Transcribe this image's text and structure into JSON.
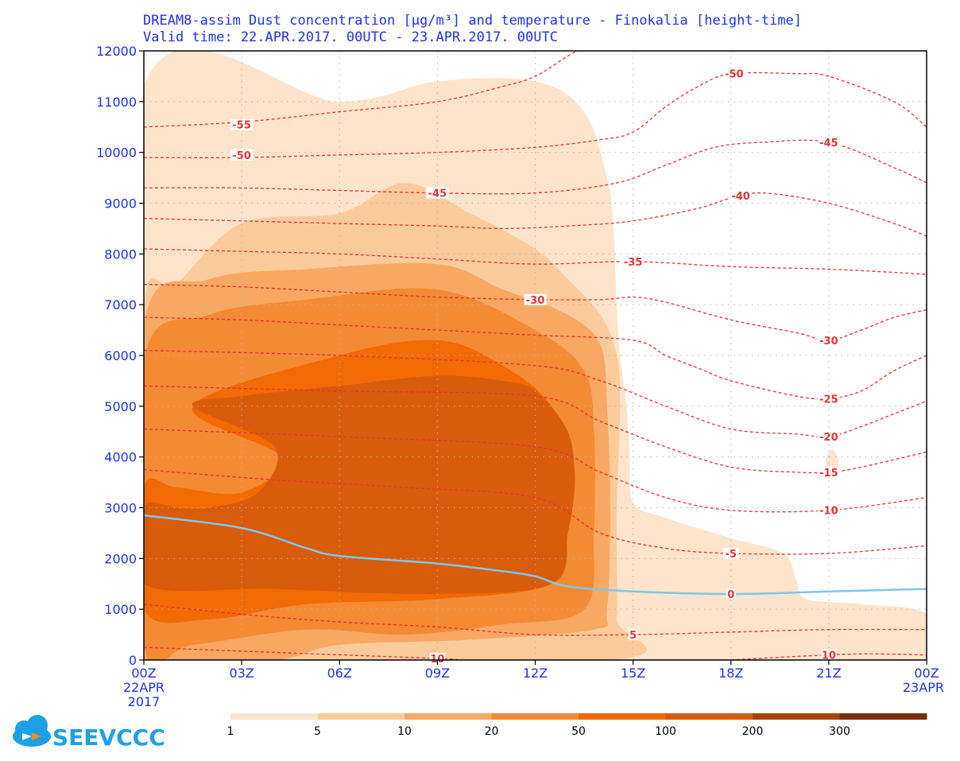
{
  "title_line1": "DREAM8-assim Dust concentration [µg/m³] and temperature - Finokalia [height-time]",
  "title_line2": "Valid time:  22.APR.2017. 00UTC - 23.APR.2017. 00UTC",
  "logo": {
    "text": "SEEVCCC",
    "icon": "cloud-icon"
  },
  "colors": {
    "axis_text": "#1e32e6",
    "temperature_contour": "#e83232",
    "zero_isotherm": "#7ec8e8",
    "dust_levels": [
      "#fde4cb",
      "#fbcb9c",
      "#f8a863",
      "#f58a35",
      "#f26a04",
      "#d85c0c",
      "#a74407",
      "#7c2e04"
    ]
  },
  "chart_data": {
    "type": "heatmap",
    "x_ticks": [
      "00Z",
      "03Z",
      "06Z",
      "09Z",
      "12Z",
      "15Z",
      "18Z",
      "21Z",
      "00Z"
    ],
    "x_tick_hours": [
      0,
      3,
      6,
      9,
      12,
      15,
      18,
      21,
      24
    ],
    "x_sub_labels": [
      [
        "22APR",
        "2017"
      ],
      [],
      [],
      [],
      [],
      [],
      [],
      [],
      [
        "23APR"
      ]
    ],
    "xlim": [
      0,
      24
    ],
    "ylim": [
      0,
      12000
    ],
    "y_ticks": [
      0,
      1000,
      2000,
      3000,
      4000,
      5000,
      6000,
      7000,
      8000,
      9000,
      10000,
      11000,
      12000
    ],
    "grid": true,
    "colorbar": {
      "labels": [
        "1",
        "5",
        "10",
        "20",
        "50",
        "100",
        "200",
        "300"
      ],
      "levels": [
        1,
        5,
        10,
        20,
        50,
        100,
        200,
        300
      ]
    },
    "dust_regions": [
      {
        "level": 1,
        "points": [
          [
            0,
            11300
          ],
          [
            6,
            11000
          ],
          [
            9,
            11400
          ],
          [
            12,
            11400
          ],
          [
            13.5,
            10800
          ],
          [
            14.2,
            9500
          ],
          [
            14.4,
            8500
          ],
          [
            14.5,
            7000
          ],
          [
            14.6,
            6000
          ],
          [
            14.8,
            5000
          ],
          [
            14.9,
            4000
          ],
          [
            15,
            3100
          ],
          [
            16,
            2800
          ],
          [
            18,
            2400
          ],
          [
            19.6,
            2100
          ],
          [
            20,
            1600
          ],
          [
            20.3,
            1200
          ],
          [
            22,
            1100
          ],
          [
            24,
            900
          ],
          [
            24,
            0
          ],
          [
            0,
            0
          ]
        ]
      },
      {
        "level": 1,
        "points": [
          [
            20.9,
            3950
          ],
          [
            21.1,
            4150
          ],
          [
            21.3,
            3950
          ],
          [
            21.2,
            3750
          ],
          [
            21,
            3800
          ]
        ]
      },
      {
        "level": 5,
        "points": [
          [
            0,
            6900
          ],
          [
            1,
            7400
          ],
          [
            3,
            8600
          ],
          [
            6,
            8800
          ],
          [
            8,
            9400
          ],
          [
            10,
            8800
          ],
          [
            12,
            8100
          ],
          [
            13,
            7500
          ],
          [
            14,
            6800
          ],
          [
            14.5,
            6000
          ],
          [
            14.6,
            5000
          ],
          [
            14.5,
            3000
          ],
          [
            14.5,
            2000
          ],
          [
            14.5,
            800
          ],
          [
            14.3,
            0
          ],
          [
            0,
            0
          ]
        ]
      },
      {
        "level": 10,
        "points": [
          [
            0,
            6600
          ],
          [
            2,
            7500
          ],
          [
            5,
            7700
          ],
          [
            9,
            7800
          ],
          [
            11,
            7300
          ],
          [
            13,
            6800
          ],
          [
            14,
            6200
          ],
          [
            14.2,
            5000
          ],
          [
            14.3,
            3000
          ],
          [
            14.2,
            1000
          ],
          [
            13.8,
            600
          ],
          [
            10,
            400
          ],
          [
            6,
            300
          ],
          [
            4,
            0
          ],
          [
            0,
            0
          ]
        ]
      },
      {
        "level": 20,
        "points": [
          [
            0,
            5900
          ],
          [
            2,
            6800
          ],
          [
            5,
            7100
          ],
          [
            9,
            7300
          ],
          [
            12,
            6500
          ],
          [
            13.5,
            5700
          ],
          [
            13.8,
            4500
          ],
          [
            13.8,
            2500
          ],
          [
            13.5,
            1000
          ],
          [
            11,
            700
          ],
          [
            8,
            500
          ],
          [
            5,
            600
          ],
          [
            1.5,
            300
          ],
          [
            0,
            300
          ]
        ]
      },
      {
        "level": 50,
        "points": [
          [
            0,
            3400
          ],
          [
            1,
            3400
          ],
          [
            3,
            3300
          ],
          [
            4.2,
            4000
          ],
          [
            1.5,
            5000
          ],
          [
            6,
            6000
          ],
          [
            9,
            6300
          ],
          [
            11,
            5800
          ],
          [
            12.5,
            5000
          ],
          [
            13.2,
            3800
          ],
          [
            13,
            2500
          ],
          [
            12.5,
            1500
          ],
          [
            9,
            1200
          ],
          [
            5,
            1100
          ],
          [
            2,
            800
          ],
          [
            0,
            1000
          ]
        ]
      },
      {
        "level": 100,
        "points": [
          [
            1.5,
            5000
          ],
          [
            4,
            4200
          ],
          [
            3.5,
            3300
          ],
          [
            2,
            3000
          ],
          [
            1,
            3000
          ],
          [
            0,
            3000
          ],
          [
            0,
            1500
          ],
          [
            4,
            1400
          ],
          [
            9,
            1300
          ],
          [
            12.5,
            1500
          ],
          [
            13,
            2500
          ],
          [
            13.2,
            3500
          ],
          [
            13,
            4500
          ],
          [
            12,
            5300
          ],
          [
            11,
            5500
          ],
          [
            9,
            5600
          ],
          [
            6,
            5400
          ],
          [
            3,
            5200
          ]
        ]
      }
    ],
    "temperature_contours": [
      {
        "level": "-55",
        "points": [
          [
            0,
            10500
          ],
          [
            3,
            10600
          ],
          [
            6,
            10800
          ],
          [
            9,
            11000
          ],
          [
            11,
            11300
          ],
          [
            12,
            11500
          ],
          [
            13,
            11900
          ],
          [
            13.3,
            12000
          ]
        ],
        "label_at": [
          3,
          10550
        ]
      },
      {
        "level": "-50",
        "points": [
          [
            0,
            9900
          ],
          [
            3,
            9900
          ],
          [
            6,
            9950
          ],
          [
            9,
            10000
          ],
          [
            12,
            10100
          ],
          [
            14,
            10250
          ],
          [
            15,
            10400
          ],
          [
            16,
            10900
          ],
          [
            17,
            11300
          ],
          [
            18,
            11550
          ],
          [
            20,
            11550
          ],
          [
            21,
            11500
          ],
          [
            23,
            11000
          ],
          [
            24,
            10500
          ]
        ],
        "label_at": [
          3,
          9950
        ],
        "label_at2": [
          18.1,
          11550
        ]
      },
      {
        "level": "-45",
        "points": [
          [
            0,
            9300
          ],
          [
            3,
            9300
          ],
          [
            6,
            9250
          ],
          [
            9,
            9200
          ],
          [
            12,
            9200
          ],
          [
            14.5,
            9400
          ],
          [
            16,
            9750
          ],
          [
            17.5,
            10100
          ],
          [
            19,
            10200
          ],
          [
            21,
            10200
          ],
          [
            23,
            9700
          ],
          [
            24,
            9400
          ]
        ],
        "label_at": [
          9,
          9200
        ],
        "label_at2": [
          21,
          10200
        ]
      },
      {
        "level": "-40",
        "points": [
          [
            0,
            8700
          ],
          [
            3,
            8650
          ],
          [
            6,
            8600
          ],
          [
            9,
            8550
          ],
          [
            11,
            8500
          ],
          [
            13,
            8550
          ],
          [
            15,
            8650
          ],
          [
            17,
            8900
          ],
          [
            18,
            9100
          ],
          [
            19,
            9200
          ],
          [
            21,
            9000
          ],
          [
            23,
            8600
          ],
          [
            24,
            8350
          ]
        ],
        "label_at": [
          18.3,
          9150
        ]
      },
      {
        "level": "-35",
        "points": [
          [
            0,
            8100
          ],
          [
            3,
            8050
          ],
          [
            6,
            8000
          ],
          [
            9,
            7900
          ],
          [
            12,
            7800
          ],
          [
            15,
            7850
          ],
          [
            18,
            7750
          ],
          [
            21,
            7700
          ],
          [
            24,
            7600
          ]
        ],
        "label_at": [
          15,
          7850
        ]
      },
      {
        "level": "-30",
        "points": [
          [
            0,
            7400
          ],
          [
            3,
            7350
          ],
          [
            6,
            7250
          ],
          [
            9,
            7150
          ],
          [
            12,
            7100
          ],
          [
            14,
            7100
          ],
          [
            15,
            7150
          ],
          [
            16,
            7050
          ],
          [
            18,
            6700
          ],
          [
            20,
            6450
          ],
          [
            21,
            6300
          ],
          [
            22,
            6500
          ],
          [
            23,
            6750
          ],
          [
            24,
            6900
          ]
        ],
        "label_at": [
          12,
          7100
        ],
        "label_at2": [
          21,
          6300
        ]
      },
      {
        "level": "-25",
        "points": [
          [
            0,
            6750
          ],
          [
            3,
            6700
          ],
          [
            6,
            6600
          ],
          [
            9,
            6500
          ],
          [
            12,
            6400
          ],
          [
            15,
            6300
          ],
          [
            16,
            6000
          ],
          [
            17,
            5750
          ],
          [
            18,
            5500
          ],
          [
            20,
            5200
          ],
          [
            21,
            5150
          ],
          [
            22,
            5300
          ],
          [
            23,
            5700
          ],
          [
            24,
            6000
          ]
        ],
        "label_at": [
          21,
          5150
        ]
      },
      {
        "level": "-20",
        "points": [
          [
            0,
            6100
          ],
          [
            6,
            6000
          ],
          [
            12,
            5800
          ],
          [
            14,
            5500
          ],
          [
            16,
            5000
          ],
          [
            18,
            4550
          ],
          [
            20,
            4450
          ],
          [
            21,
            4400
          ],
          [
            22,
            4600
          ],
          [
            23,
            4850
          ],
          [
            24,
            5100
          ]
        ],
        "label_at": [
          21,
          4400
        ]
      },
      {
        "level": "-15",
        "points": [
          [
            0,
            5400
          ],
          [
            6,
            5300
          ],
          [
            12,
            5200
          ],
          [
            14,
            4700
          ],
          [
            16,
            4200
          ],
          [
            18,
            3800
          ],
          [
            20,
            3700
          ],
          [
            21,
            3700
          ],
          [
            22,
            3800
          ],
          [
            24,
            4100
          ]
        ],
        "label_at": [
          21,
          3700
        ]
      },
      {
        "level": "-10",
        "points": [
          [
            0,
            4550
          ],
          [
            6,
            4400
          ],
          [
            12,
            4200
          ],
          [
            14,
            3700
          ],
          [
            16,
            3200
          ],
          [
            18,
            2950
          ],
          [
            21,
            2950
          ],
          [
            24,
            3200
          ]
        ],
        "label_at": [
          21,
          2950
        ]
      },
      {
        "level": "-5",
        "points": [
          [
            0,
            3750
          ],
          [
            4,
            3550
          ],
          [
            8,
            3400
          ],
          [
            12,
            3200
          ],
          [
            14,
            2500
          ],
          [
            16,
            2200
          ],
          [
            18,
            2100
          ],
          [
            21,
            2100
          ],
          [
            24,
            2250
          ]
        ],
        "label_at": [
          18,
          2100
        ]
      },
      {
        "level": "0",
        "zero": true,
        "points": [
          [
            0,
            2850
          ],
          [
            3,
            2600
          ],
          [
            5,
            2200
          ],
          [
            6,
            2050
          ],
          [
            9,
            1900
          ],
          [
            11,
            1750
          ],
          [
            12,
            1650
          ],
          [
            13,
            1450
          ],
          [
            15,
            1350
          ],
          [
            18,
            1300
          ],
          [
            21,
            1350
          ],
          [
            24,
            1400
          ]
        ],
        "label_at": [
          18,
          1300
        ]
      },
      {
        "level": "5",
        "points": [
          [
            0,
            1100
          ],
          [
            3,
            900
          ],
          [
            6,
            750
          ],
          [
            9,
            650
          ],
          [
            12,
            500
          ],
          [
            15,
            500
          ],
          [
            18,
            550
          ],
          [
            21,
            600
          ],
          [
            24,
            600
          ]
        ],
        "label_at": [
          15,
          500
        ]
      },
      {
        "level": "10",
        "points": [
          [
            0,
            250
          ],
          [
            4,
            150
          ],
          [
            9,
            30
          ],
          [
            9.6,
            0
          ]
        ],
        "label_at": [
          9,
          30
        ]
      },
      {
        "level": "10",
        "points": [
          [
            18,
            0
          ],
          [
            20,
            70
          ],
          [
            22,
            120
          ],
          [
            24,
            100
          ]
        ],
        "label_at": [
          21,
          100
        ]
      }
    ]
  }
}
